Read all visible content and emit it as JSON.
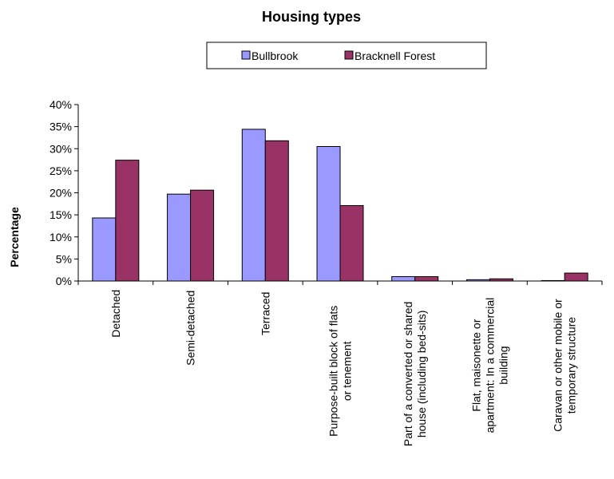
{
  "chart_data": {
    "type": "bar",
    "title": "Housing types",
    "ylabel": "Percentage",
    "xlabel": "",
    "ylim": [
      0,
      0.4
    ],
    "yticks": [
      "0%",
      "5%",
      "10%",
      "15%",
      "20%",
      "25%",
      "30%",
      "35%",
      "40%"
    ],
    "categories": [
      [
        "Detached"
      ],
      [
        "Semi-detached"
      ],
      [
        "Terraced"
      ],
      [
        "Purpose-built block of flats",
        "or tenement"
      ],
      [
        "Part of a converted or shared",
        "house (including bed-sits)"
      ],
      [
        "Flat, maisonette or",
        "apartment: In a commercial",
        "building"
      ],
      [
        "Caravan or other mobile or",
        "temporary structure"
      ]
    ],
    "series": [
      {
        "name": "Bullbrook",
        "color": "#9999ff",
        "values": [
          0.143,
          0.197,
          0.344,
          0.305,
          0.01,
          0.003,
          0.001
        ]
      },
      {
        "name": "Bracknell Forest",
        "color": "#993366",
        "values": [
          0.274,
          0.206,
          0.318,
          0.171,
          0.01,
          0.005,
          0.018
        ]
      }
    ],
    "legend_position": "top"
  }
}
